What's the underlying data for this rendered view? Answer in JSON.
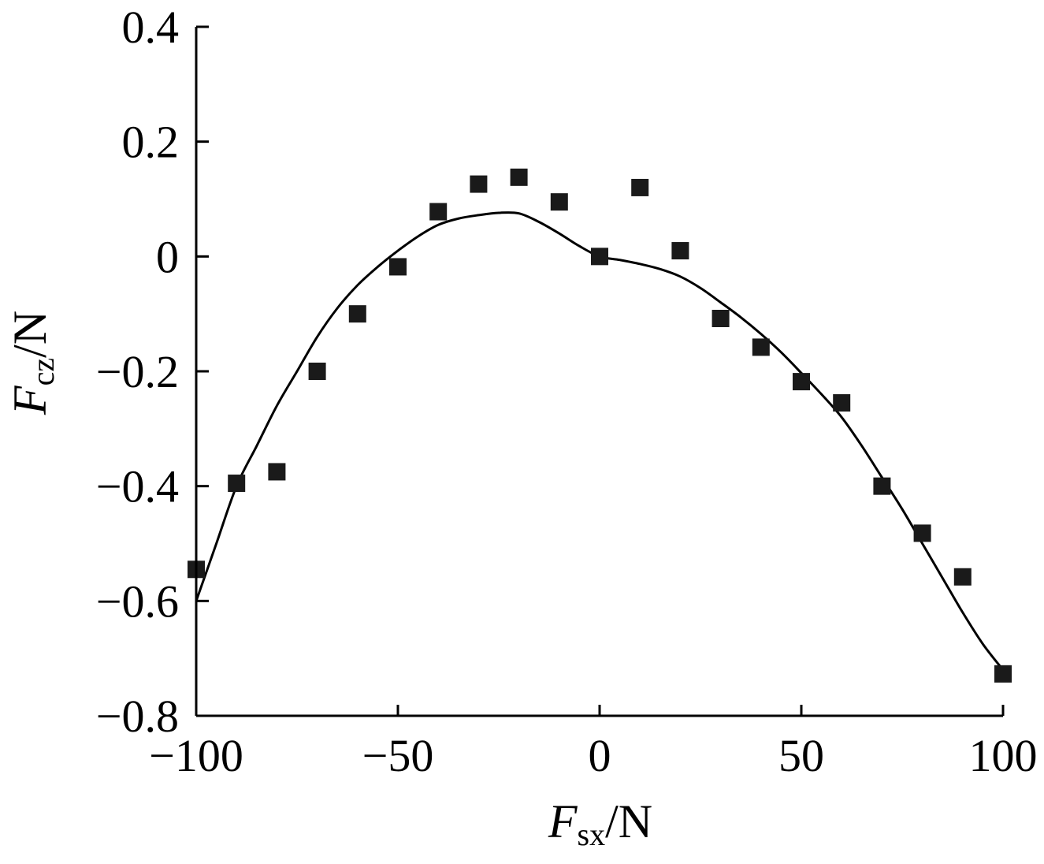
{
  "chart_data": {
    "type": "scatter",
    "xlabel": {
      "symbol": "F",
      "subscript": "sx",
      "unit": "/N"
    },
    "ylabel": {
      "symbol": "F",
      "subscript": "cz",
      "unit": "/N"
    },
    "xlim": [
      -100,
      100
    ],
    "ylim": [
      -0.8,
      0.4
    ],
    "x_ticks": [
      -100,
      -50,
      0,
      50,
      100
    ],
    "x_tick_labels": [
      "−100",
      "−50",
      "0",
      "50",
      "100"
    ],
    "y_ticks": [
      0.4,
      0.2,
      0,
      -0.2,
      -0.4,
      -0.6,
      -0.8
    ],
    "y_tick_labels": [
      "0.4",
      "0.2",
      "0",
      "−0.2",
      "−0.4",
      "−0.6",
      "−0.8"
    ],
    "grid": false,
    "series": [
      {
        "kind": "points",
        "marker": "square",
        "color": "#1a1a1a",
        "x": [
          -100,
          -90,
          -80,
          -70,
          -60,
          -50,
          -40,
          -30,
          -20,
          -10,
          0,
          10,
          20,
          30,
          40,
          50,
          60,
          70,
          80,
          90,
          100
        ],
        "y": [
          -0.545,
          -0.395,
          -0.375,
          -0.2,
          -0.1,
          -0.018,
          0.078,
          0.126,
          0.138,
          0.095,
          0.0,
          0.12,
          0.01,
          -0.108,
          -0.158,
          -0.218,
          -0.255,
          -0.4,
          -0.482,
          -0.558,
          -0.727
        ]
      },
      {
        "kind": "line",
        "color": "#000000",
        "x": [
          -100,
          -95,
          -90,
          -85,
          -80,
          -75,
          -70,
          -65,
          -60,
          -55,
          -50,
          -45,
          -40,
          -35,
          -30,
          -25,
          -20,
          -15,
          -10,
          -5,
          0,
          5,
          10,
          15,
          20,
          25,
          30,
          35,
          40,
          45,
          50,
          55,
          60,
          65,
          70,
          75,
          80,
          85,
          90,
          95,
          100
        ],
        "y": [
          -0.6,
          -0.5,
          -0.4,
          -0.33,
          -0.26,
          -0.2,
          -0.14,
          -0.09,
          -0.05,
          -0.018,
          0.01,
          0.035,
          0.055,
          0.066,
          0.072,
          0.076,
          0.075,
          0.06,
          0.04,
          0.018,
          0.0,
          -0.006,
          -0.013,
          -0.022,
          -0.035,
          -0.055,
          -0.08,
          -0.106,
          -0.135,
          -0.167,
          -0.203,
          -0.24,
          -0.28,
          -0.33,
          -0.385,
          -0.44,
          -0.5,
          -0.56,
          -0.62,
          -0.675,
          -0.72
        ]
      }
    ]
  }
}
